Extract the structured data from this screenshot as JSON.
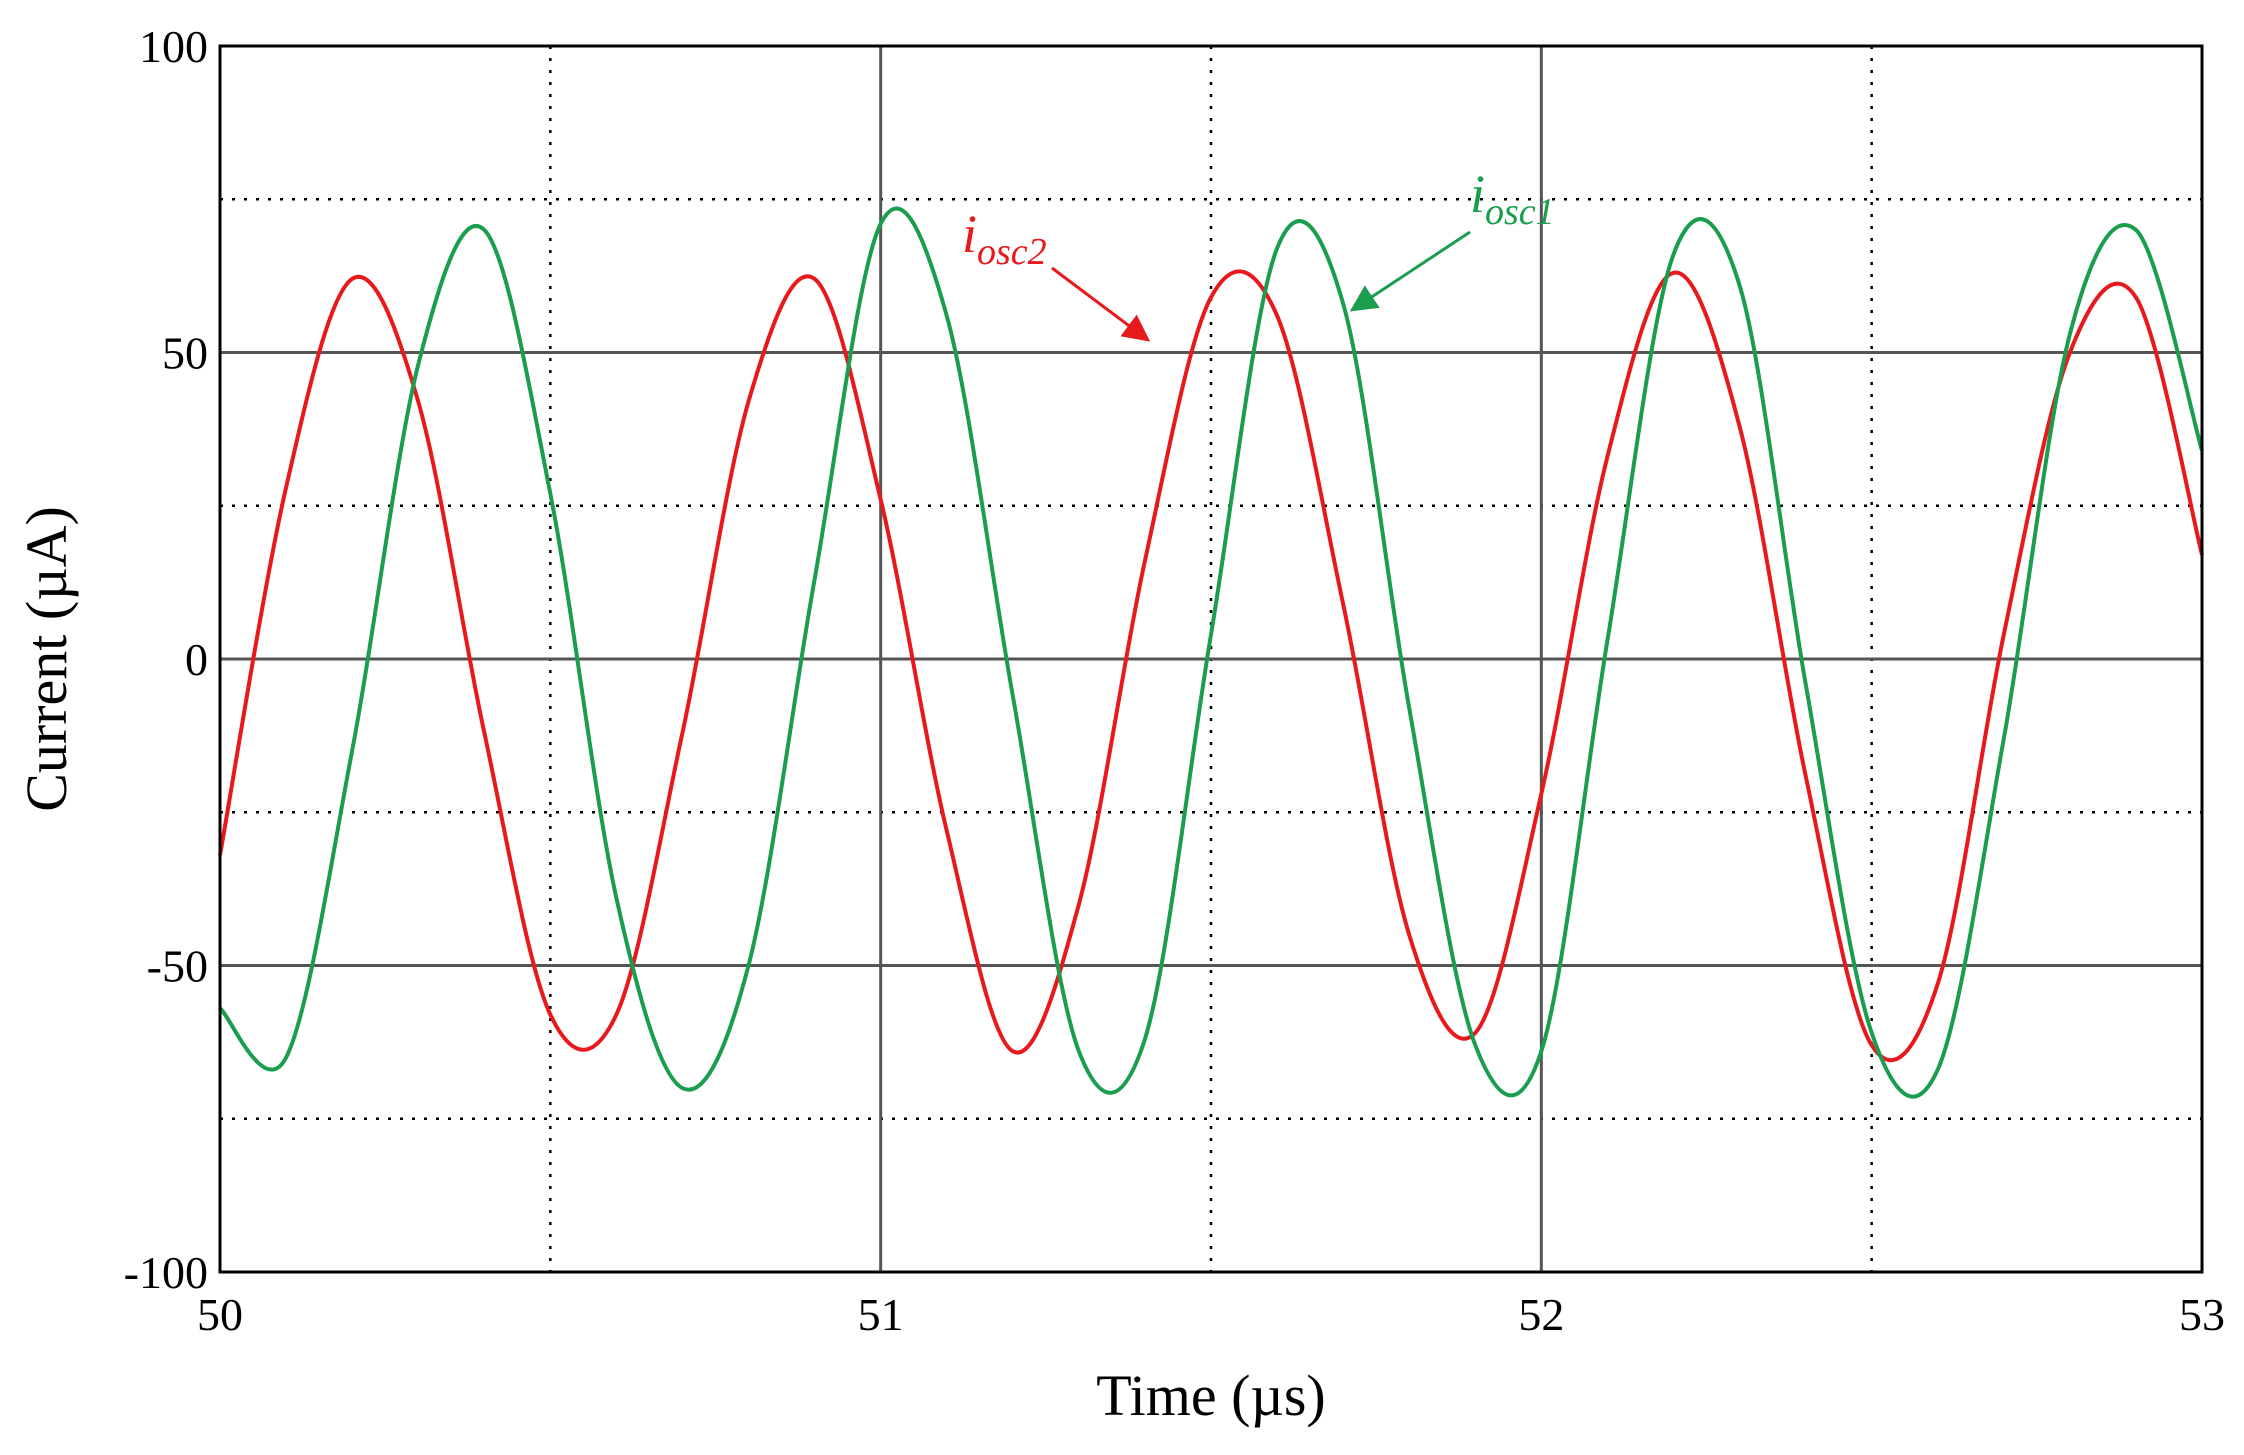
{
  "chart_data": {
    "type": "line",
    "xlabel": "Time (µs)",
    "ylabel": "Current (µA)",
    "xlim": [
      50,
      53
    ],
    "ylim": [
      -100,
      100
    ],
    "x_ticks": [
      "50",
      "51",
      "52",
      "53"
    ],
    "y_ticks": [
      "100",
      "50",
      "0",
      "-50",
      "-100"
    ],
    "grid": {
      "major_x": [
        51,
        52
      ],
      "major_y": [
        50,
        0,
        -50
      ],
      "minor_x": [
        50.5,
        51.5,
        52.5
      ],
      "minor_y": [
        75,
        25,
        -25,
        -75
      ]
    },
    "x": [
      50.0,
      50.1,
      50.2,
      50.3,
      50.4,
      50.5,
      50.6,
      50.7,
      50.8,
      50.9,
      51.0,
      51.1,
      51.2,
      51.3,
      51.4,
      51.5,
      51.6,
      51.7,
      51.8,
      51.9,
      52.0,
      52.1,
      52.2,
      52.3,
      52.4,
      52.5,
      52.6,
      52.7,
      52.8,
      52.9,
      53.0
    ],
    "series": [
      {
        "name": "i",
        "name_sub": "osc2",
        "color": "#e8191d",
        "values": [
          -32,
          28,
          62,
          42,
          -12,
          -58,
          -58,
          -12,
          42,
          62,
          26,
          -28,
          -64,
          -40,
          16,
          59,
          56,
          9,
          -45,
          -61,
          -22,
          33,
          63,
          38,
          -19,
          -63,
          -53,
          4,
          50,
          59,
          17
        ]
      },
      {
        "name": "i",
        "name_sub": "osc1",
        "color": "#1a9e4e",
        "values": [
          -57,
          -65,
          -15,
          48,
          70,
          27,
          -39,
          -70,
          -50,
          13,
          71,
          56,
          -6,
          -64,
          -62,
          4,
          67,
          58,
          -8,
          -63,
          -64,
          3,
          66,
          61,
          -4,
          -61,
          -67,
          -13,
          53,
          70,
          34
        ]
      }
    ],
    "annotations": [
      {
        "series_index": 0,
        "text": "i",
        "sub": "osc2"
      },
      {
        "series_index": 1,
        "text": "i",
        "sub": "osc1"
      }
    ]
  }
}
